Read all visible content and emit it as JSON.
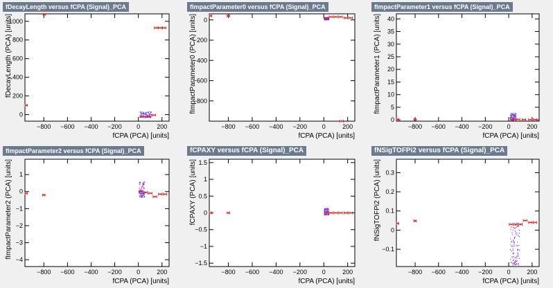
{
  "chart_data": [
    {
      "type": "scatter",
      "title": "fDecayLength versus fCPA (Signal)_PCA",
      "xlabel": "fCPA (PCA)  [units]",
      "ylabel": "fDecayLength (PCA)  [units]",
      "xlim": [
        -960,
        260
      ],
      "ylim": [
        -70,
        1080
      ],
      "xticks": [
        -800,
        -600,
        -400,
        -200,
        0,
        200
      ],
      "yticks": [
        0,
        200,
        400,
        600,
        800,
        1000
      ],
      "xtick_labels": [
        "−800",
        "−600",
        "−400",
        "−200",
        "0",
        "200"
      ],
      "ytick_labels": [
        "0",
        "200",
        "400",
        "600",
        "800",
        "1000"
      ],
      "cloud": {
        "x": [
          10,
          110
        ],
        "y": [
          -25,
          40
        ]
      },
      "points": [
        {
          "x": -950,
          "y": 100,
          "xerr": 10
        },
        {
          "x": 30,
          "y": -20,
          "xerr": 15
        },
        {
          "x": 80,
          "y": -25,
          "xerr": 20
        },
        {
          "x": 130,
          "y": -5,
          "xerr": 15
        },
        {
          "x": 150,
          "y": 930,
          "xerr": 15
        },
        {
          "x": 185,
          "y": 930,
          "xerr": 15
        },
        {
          "x": 220,
          "y": 930,
          "xerr": 15
        },
        {
          "x": -795,
          "y": 1075,
          "xerr": 10
        }
      ]
    },
    {
      "type": "scatter",
      "title": "fImpactParameter0 versus fCPA (Signal)_PCA",
      "xlabel": "fCPA (PCA)  [units]",
      "ylabel": "fImpactParameter0 (PCA)  [units]",
      "xlim": [
        -960,
        260
      ],
      "ylim": [
        -1000,
        60
      ],
      "xticks": [
        -800,
        -600,
        -400,
        -200,
        0,
        200
      ],
      "yticks": [
        -800,
        -600,
        -400,
        -200,
        0
      ],
      "xtick_labels": [
        "−800",
        "−600",
        "−400",
        "−200",
        "0",
        "200"
      ],
      "ytick_labels": [
        "−800",
        "−600",
        "−400",
        "−200",
        "0"
      ],
      "cloud": {
        "x": [
          0,
          40
        ],
        "y": [
          5,
          30
        ]
      },
      "points": [
        {
          "x": -950,
          "y": 40,
          "xerr": 10
        },
        {
          "x": -800,
          "y": 40,
          "xerr": 10
        },
        {
          "x": 20,
          "y": 15,
          "xerr": 15
        },
        {
          "x": 60,
          "y": 30,
          "xerr": 15
        },
        {
          "x": 100,
          "y": 30,
          "xerr": 15
        },
        {
          "x": 140,
          "y": 30,
          "xerr": 15
        },
        {
          "x": 185,
          "y": 20,
          "xerr": 15
        },
        {
          "x": 225,
          "y": 20,
          "xerr": 15
        },
        {
          "x": 150,
          "y": -1000,
          "xerr": 15
        }
      ]
    },
    {
      "type": "scatter",
      "title": "fImpactParameter1 versus fCPA (Signal)_PCA",
      "xlabel": "fCPA (PCA)  [units]",
      "ylabel": "fImpactParameter1 (PCA)  [units]",
      "xlim": [
        -960,
        260
      ],
      "ylim": [
        -0.5,
        42
      ],
      "xticks": [
        -800,
        -600,
        -400,
        -200,
        0,
        200
      ],
      "yticks": [
        0,
        5,
        10,
        15,
        20,
        25,
        30,
        35,
        40
      ],
      "xtick_labels": [
        "−800",
        "−600",
        "−400",
        "−200",
        "0",
        "200"
      ],
      "ytick_labels": [
        "0",
        "5",
        "10",
        "15",
        "20",
        "25",
        "30",
        "35",
        "40"
      ],
      "cloud": {
        "x": [
          10,
          60
        ],
        "y": [
          0,
          3
        ]
      },
      "points": [
        {
          "x": -950,
          "y": 0.2,
          "xerr": 10
        },
        {
          "x": -800,
          "y": 0.1,
          "xerr": 10
        },
        {
          "x": 30,
          "y": 0.3,
          "xerr": 15
        },
        {
          "x": 80,
          "y": 0.2,
          "xerr": 15
        },
        {
          "x": 130,
          "y": 0.1,
          "xerr": 15
        },
        {
          "x": 185,
          "y": 0.1,
          "xerr": 15
        },
        {
          "x": 225,
          "y": 0.1,
          "xerr": 15
        }
      ]
    },
    {
      "type": "scatter",
      "title": "fImpactParameter2 versus fCPA (Signal)_PCA",
      "xlabel": "fCPA (PCA)  [units]",
      "ylabel": "fImpactParameter2 (PCA)  [units]",
      "xlim": [
        -960,
        260
      ],
      "ylim": [
        -4.4,
        1.9
      ],
      "xticks": [
        -800,
        -600,
        -400,
        -200,
        0,
        200
      ],
      "yticks": [
        -4,
        -3,
        -2,
        -1,
        0,
        1
      ],
      "xtick_labels": [
        "−800",
        "−600",
        "−400",
        "−200",
        "0",
        "200"
      ],
      "ytick_labels": [
        "−4",
        "−3",
        "−2",
        "−1",
        "0",
        "1"
      ],
      "cloud": {
        "x": [
          5,
          50
        ],
        "y": [
          -0.3,
          0.6
        ]
      },
      "points": [
        {
          "x": -950,
          "y": -0.1,
          "xerr": 10
        },
        {
          "x": -800,
          "y": -0.2,
          "xerr": 10
        },
        {
          "x": 20,
          "y": 0.0,
          "xerr": 15
        },
        {
          "x": 60,
          "y": -0.05,
          "xerr": 15
        },
        {
          "x": 100,
          "y": -0.1,
          "xerr": 15
        },
        {
          "x": 140,
          "y": -0.3,
          "xerr": 15
        },
        {
          "x": 185,
          "y": -0.15,
          "xerr": 15
        },
        {
          "x": 225,
          "y": -0.15,
          "xerr": 15
        }
      ]
    },
    {
      "type": "scatter",
      "title": "fCPAXY versus fCPA (Signal)_PCA",
      "xlabel": "fCPA (PCA)  [units]",
      "ylabel": "fCPAXY (PCA)  [units]",
      "xlim": [
        -960,
        260
      ],
      "ylim": [
        -1.6,
        1.6
      ],
      "xticks": [
        -800,
        -600,
        -400,
        -200,
        0,
        200
      ],
      "yticks": [
        -1.5,
        -1,
        -0.5,
        0,
        0.5,
        1,
        1.5
      ],
      "xtick_labels": [
        "−800",
        "−600",
        "−400",
        "−200",
        "0",
        "200"
      ],
      "ytick_labels": [
        "−1.5",
        "−1",
        "−0.5",
        "0",
        "0.5",
        "1",
        "1.5"
      ],
      "cloud": {
        "x": [
          0,
          40
        ],
        "y": [
          -0.05,
          0.15
        ]
      },
      "points": [
        {
          "x": -950,
          "y": 0.0,
          "xerr": 10
        },
        {
          "x": -800,
          "y": 0.0,
          "xerr": 10
        },
        {
          "x": 20,
          "y": 0.0,
          "xerr": 15
        },
        {
          "x": 60,
          "y": 0.0,
          "xerr": 15
        },
        {
          "x": 100,
          "y": 0.0,
          "xerr": 15
        },
        {
          "x": 140,
          "y": 0.0,
          "xerr": 15
        },
        {
          "x": 185,
          "y": 0.0,
          "xerr": 15
        },
        {
          "x": 225,
          "y": 0.0,
          "xerr": 15
        }
      ]
    },
    {
      "type": "scatter",
      "title": "fNSigTOFPi2 versus fCPA (Signal)_PCA",
      "xlabel": "fCPA (PCA)  [units]",
      "ylabel": "fNSigTOFPi2 (PCA)  [units]",
      "xlim": [
        -960,
        260
      ],
      "ylim": [
        -0.19,
        0.37
      ],
      "xticks": [
        -800,
        -600,
        -400,
        -200,
        0,
        200
      ],
      "yticks": [
        -0.1,
        0,
        0.1,
        0.2,
        0.3
      ],
      "xtick_labels": [
        "−800",
        "−600",
        "−400",
        "−200",
        "0",
        "200"
      ],
      "ytick_labels": [
        "−0.1",
        "0",
        "0.1",
        "0.2",
        "0.3"
      ],
      "cloud": {
        "x": [
          10,
          90
        ],
        "y": [
          -0.18,
          0.04
        ]
      },
      "points": [
        {
          "x": -950,
          "y": 0.035,
          "xerr": 10
        },
        {
          "x": -800,
          "y": 0.048,
          "xerr": 10
        },
        {
          "x": 20,
          "y": 0.03,
          "xerr": 15
        },
        {
          "x": 60,
          "y": 0.03,
          "xerr": 15
        },
        {
          "x": 100,
          "y": 0.03,
          "xerr": 15
        },
        {
          "x": 140,
          "y": 0.05,
          "xerr": 15
        },
        {
          "x": 185,
          "y": 0.04,
          "xerr": 15
        },
        {
          "x": 225,
          "y": 0.04,
          "xerr": 15
        }
      ]
    }
  ]
}
